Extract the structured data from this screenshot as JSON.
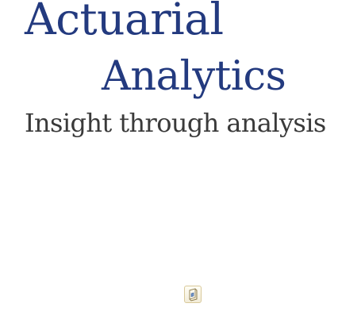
{
  "logo": {
    "line_1": "Actuarial",
    "line_2": "Analytics"
  },
  "tagline": "Insight through analysis",
  "plugin": {
    "icon": "missing-plugin-icon"
  },
  "colors": {
    "brand_navy": "#233a7f",
    "tagline_gray": "#3a3a3a"
  }
}
